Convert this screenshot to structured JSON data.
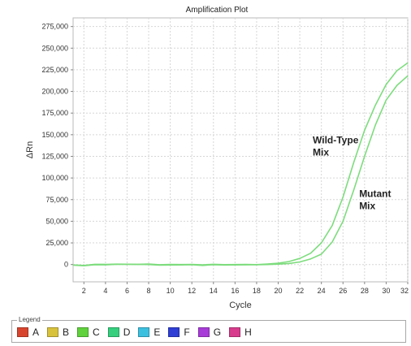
{
  "chart_data": {
    "type": "line",
    "title": "Amplification Plot",
    "xlabel": "Cycle",
    "ylabel": "ΔRn",
    "xlim": [
      1,
      32
    ],
    "ylim": [
      -20000,
      285000
    ],
    "xticks": [
      2,
      4,
      6,
      8,
      10,
      12,
      14,
      16,
      18,
      20,
      22,
      24,
      26,
      28,
      30,
      32
    ],
    "yticks": [
      0,
      25000,
      50000,
      75000,
      100000,
      125000,
      150000,
      175000,
      200000,
      225000,
      250000,
      275000
    ],
    "ytick_labels": [
      "0",
      "25,000",
      "50,000",
      "75,000",
      "100,000",
      "125,000",
      "150,000",
      "175,000",
      "200,000",
      "225,000",
      "250,000",
      "275,000"
    ],
    "grid": true,
    "line_color": "#7ddc7d",
    "x": [
      1,
      2,
      3,
      4,
      5,
      6,
      7,
      8,
      9,
      10,
      11,
      12,
      13,
      14,
      15,
      16,
      17,
      18,
      19,
      20,
      21,
      22,
      23,
      24,
      25,
      26,
      27,
      28,
      29,
      30,
      31,
      32
    ],
    "series": [
      {
        "values": [
          -500,
          -1000,
          300,
          200,
          500,
          400,
          300,
          600,
          -200,
          100,
          0,
          200,
          -400,
          300,
          -100,
          0,
          200,
          -100,
          600,
          1500,
          3500,
          7000,
          13000,
          25000,
          45000,
          78000,
          118000,
          155000,
          184000,
          208000,
          224000,
          233000
        ]
      },
      {
        "values": [
          -800,
          -1400,
          -200,
          -400,
          200,
          300,
          100,
          0,
          -800,
          -600,
          -500,
          -300,
          -1000,
          -200,
          -600,
          -500,
          -400,
          -300,
          0,
          500,
          1200,
          3000,
          6500,
          12000,
          26000,
          50000,
          86000,
          125000,
          161000,
          190000,
          207000,
          218000
        ]
      }
    ],
    "annotations": [
      {
        "text": [
          "Wild-Type",
          "Mix"
        ],
        "x": 23.2,
        "y": 140000
      },
      {
        "text": [
          "Mutant",
          "Mix"
        ],
        "x": 27.5,
        "y": 78000
      }
    ]
  },
  "legend": {
    "title": "Legend",
    "items": [
      {
        "label": "A",
        "color": "#d8452e"
      },
      {
        "label": "B",
        "color": "#d8c23c"
      },
      {
        "label": "C",
        "color": "#5fd23c"
      },
      {
        "label": "D",
        "color": "#35cf7e"
      },
      {
        "label": "E",
        "color": "#3cc0e0"
      },
      {
        "label": "F",
        "color": "#2f3fd6"
      },
      {
        "label": "G",
        "color": "#a83cd8"
      },
      {
        "label": "H",
        "color": "#d83c8c"
      }
    ]
  }
}
